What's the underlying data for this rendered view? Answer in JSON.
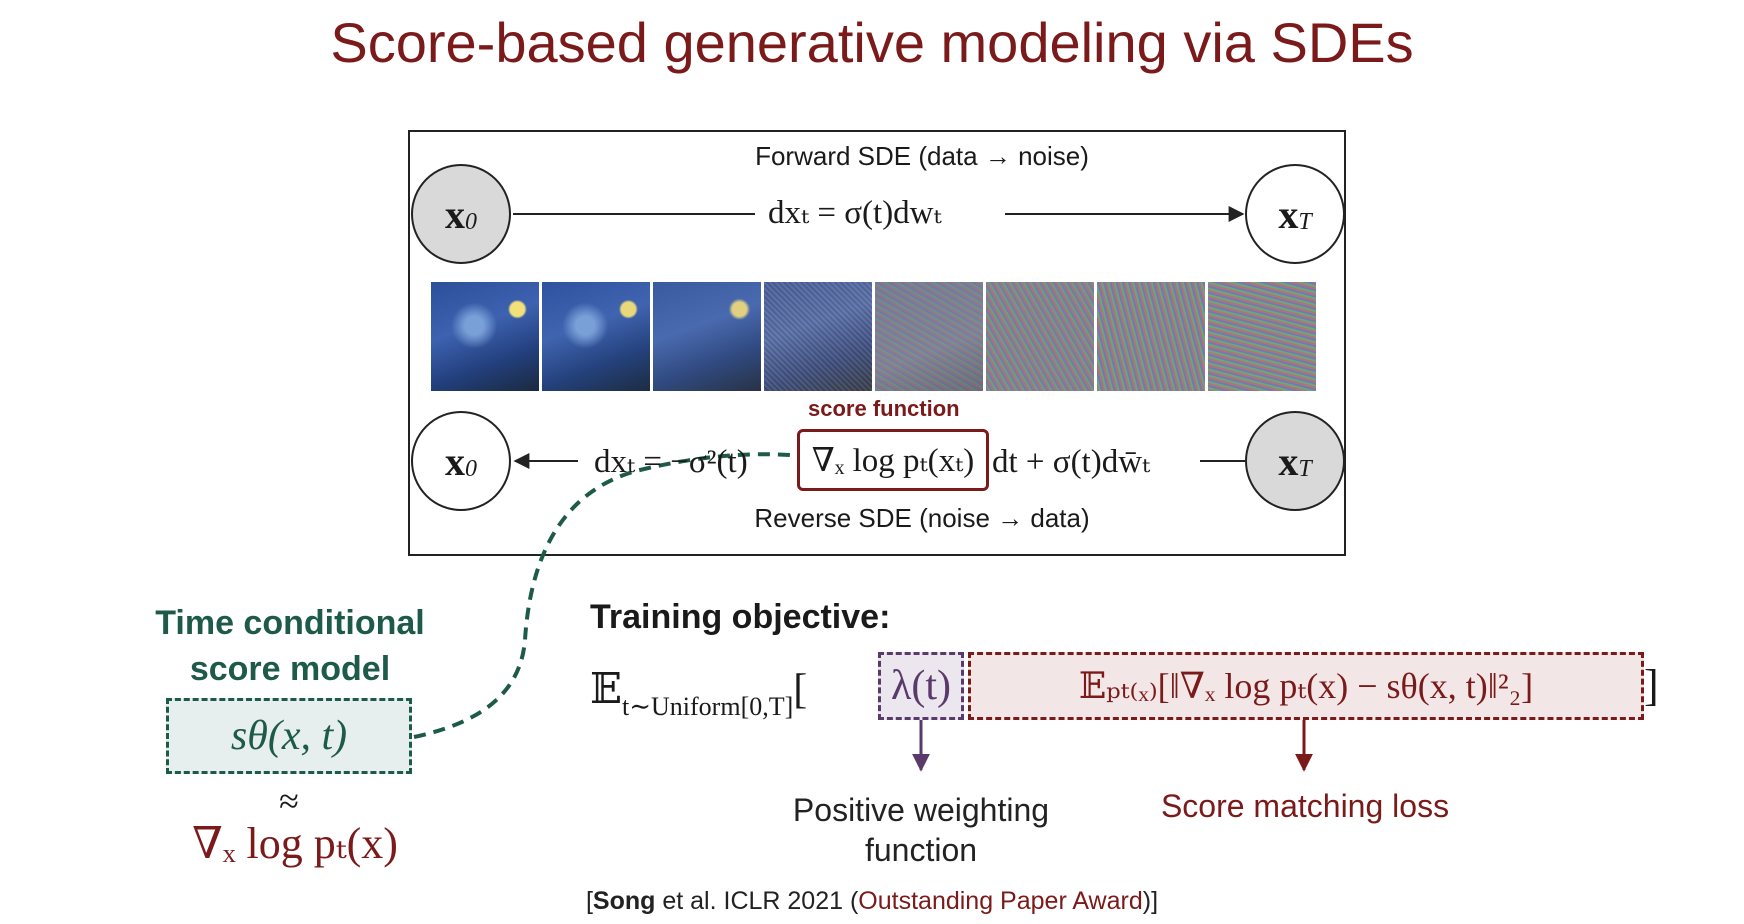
{
  "title": "Score-based generative modeling via SDEs",
  "forward": {
    "label": "Forward SDE (data → noise)",
    "equation": "dxₜ = σ(t)dwₜ",
    "start_node": "x",
    "start_sub": "0",
    "end_node": "x",
    "end_sub": "T"
  },
  "reverse": {
    "label": "Reverse SDE (noise → data)",
    "eq_prefix": "dxₜ = −σ²(t)",
    "eq_score": "∇ₓ log pₜ(xₜ)",
    "eq_suffix": "dt + σ(t)dw̄ₜ",
    "start_node": "x",
    "start_sub": "T",
    "end_node": "x",
    "end_sub": "0"
  },
  "score_function_label": "score function",
  "model": {
    "heading_line1": "Time conditional",
    "heading_line2": "score model",
    "expr": "sθ(x, t)",
    "approx": "≈",
    "target": "∇ₓ log pₜ(x)"
  },
  "training": {
    "heading": "Training objective:",
    "expectation": "𝔼",
    "expectation_sub": "t∼Uniform[0,T]",
    "open_bracket": "[",
    "lambda": "λ(t)",
    "loss": "𝔼ₚₜ₍ₓ₎[‖∇ₓ log pₜ(x) − sθ(x, t)‖²₂]",
    "close_bracket": "]",
    "lambda_caption_line1": "Positive weighting",
    "lambda_caption_line2": "function",
    "loss_caption": "Score matching loss"
  },
  "citation": {
    "open": "[",
    "author": "Song",
    "rest": " et al. ICLR 2021 (",
    "award": "Outstanding Paper Award",
    "close": ")]"
  },
  "colors": {
    "title": "#7b1a1a",
    "green": "#1d5a4a",
    "brown": "#7b1a1a",
    "purple": "#5a3a6a"
  }
}
